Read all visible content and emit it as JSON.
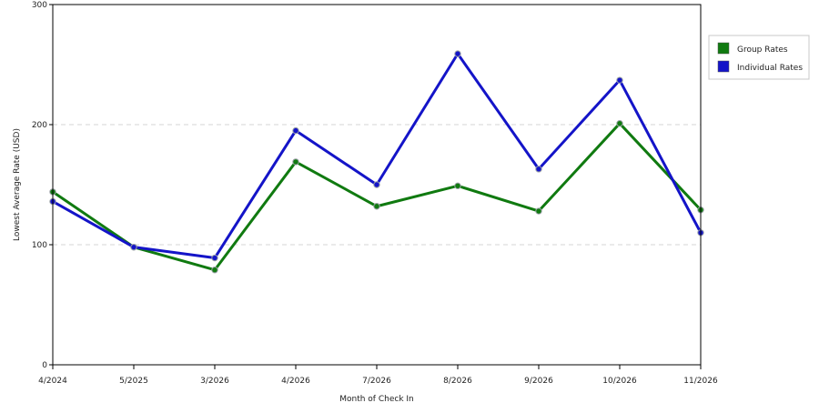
{
  "chart_data": {
    "type": "line",
    "title": "",
    "xlabel": "Month of Check In",
    "ylabel": "Lowest Average Rate (USD)",
    "categories": [
      "4/2024",
      "5/2025",
      "3/2026",
      "4/2026",
      "7/2026",
      "8/2026",
      "9/2026",
      "10/2026",
      "11/2026"
    ],
    "ylim": [
      0,
      300
    ],
    "yticks": [
      0,
      100,
      200,
      300
    ],
    "grid": "horizontal dashed",
    "legend_position": "right",
    "series": [
      {
        "name": "Group Rates",
        "color": "#107a10",
        "values": [
          144,
          98,
          79,
          169,
          132,
          149,
          128,
          201,
          129
        ]
      },
      {
        "name": "Individual Rates",
        "color": "#1414c8",
        "values": [
          136,
          98,
          89,
          195,
          150,
          259,
          163,
          237,
          110
        ]
      }
    ]
  }
}
